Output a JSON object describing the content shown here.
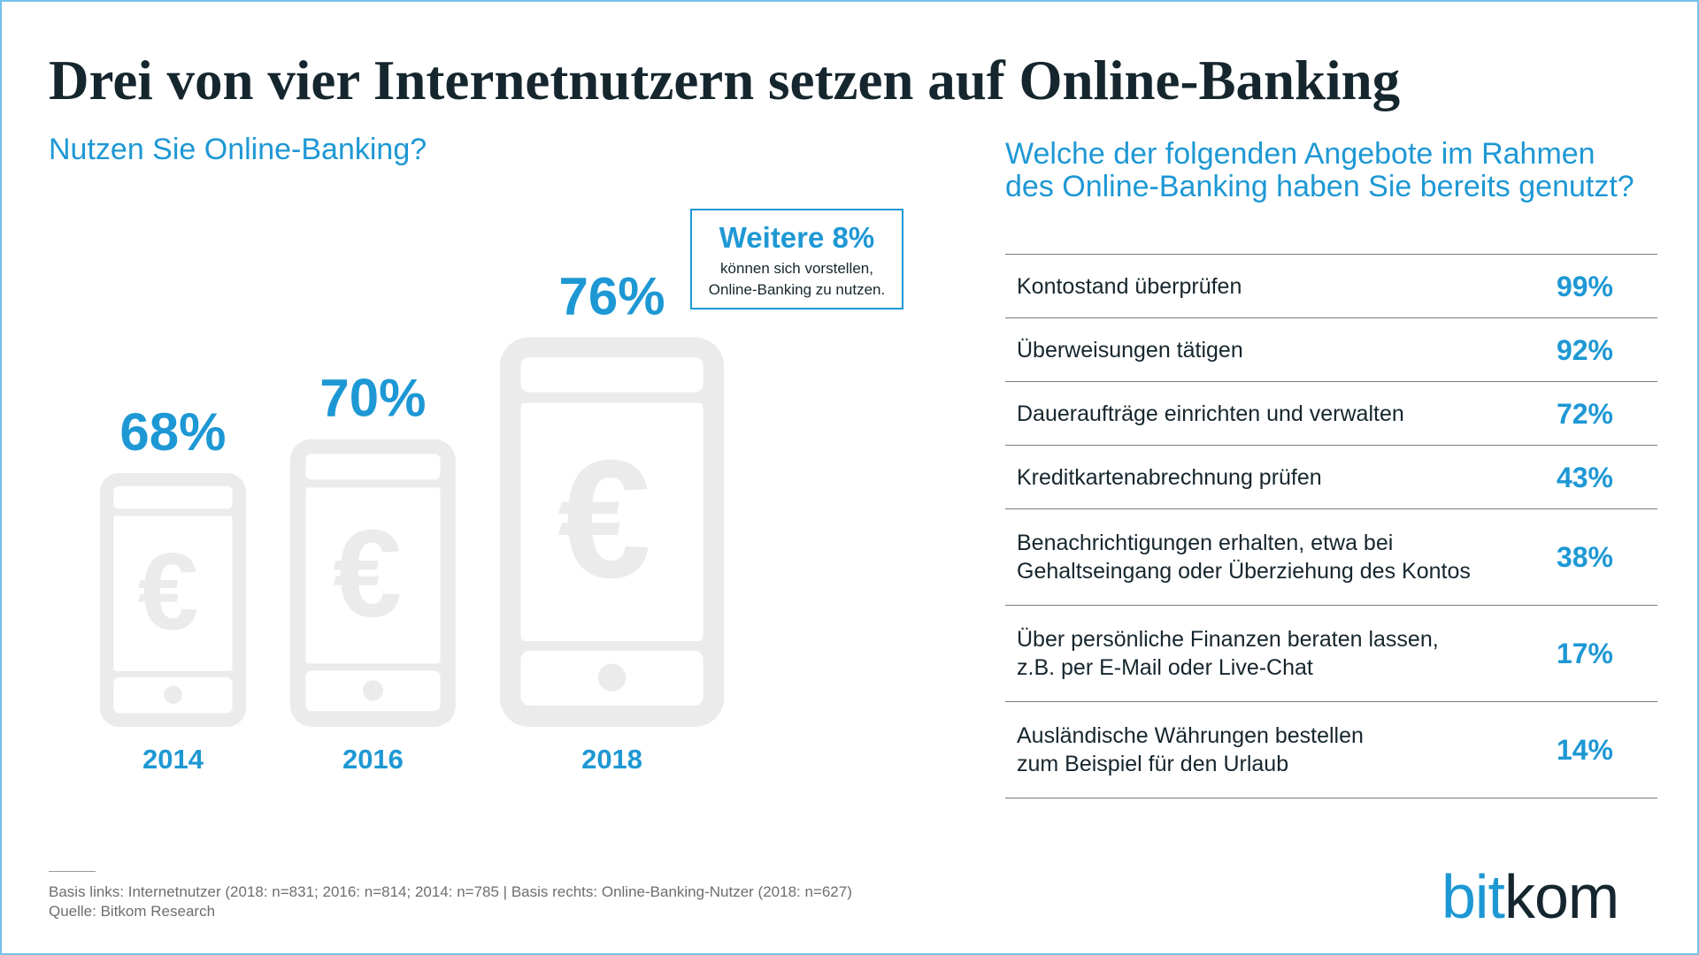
{
  "title": "Drei von vier Internetnutzern setzen auf Online-Banking",
  "chart_data": [
    {
      "type": "bar",
      "title": "Nutzen Sie Online-Banking?",
      "categories": [
        "2014",
        "2016",
        "2018"
      ],
      "values": [
        68,
        70,
        76
      ],
      "unit": "%",
      "mark_icon": "smartphone-euro-icon",
      "annotation": {
        "headline": "Weitere 8%",
        "lines": [
          "können sich vorstellen,",
          "Online-Banking zu nutzen."
        ]
      }
    },
    {
      "type": "table",
      "title_lines": [
        "Welche der folgenden Angebote im Rahmen",
        "des Online-Banking haben Sie bereits genutzt?"
      ],
      "unit": "%",
      "rows": [
        {
          "label_lines": [
            "Kontostand überprüfen"
          ],
          "value": 99
        },
        {
          "label_lines": [
            "Überweisungen tätigen"
          ],
          "value": 92
        },
        {
          "label_lines": [
            "Daueraufträge einrichten und verwalten"
          ],
          "value": 72
        },
        {
          "label_lines": [
            "Kreditkartenabrechnung prüfen"
          ],
          "value": 43
        },
        {
          "label_lines": [
            "Benachrichtigungen erhalten, etwa bei",
            "Gehaltseingang oder Überziehung des Kontos"
          ],
          "value": 38
        },
        {
          "label_lines": [
            "Über persönliche Finanzen beraten lassen,",
            "z.B. per E-Mail oder Live-Chat"
          ],
          "value": 17
        },
        {
          "label_lines": [
            "Ausländische Währungen bestellen",
            "zum Beispiel für den Urlaub"
          ],
          "value": 14
        }
      ]
    }
  ],
  "footer": {
    "basis": "Basis links: Internetnutzer (2018: n=831; 2016: n=814; 2014: n=785 | Basis rechts: Online-Banking-Nutzer (2018: n=627)",
    "source": "Quelle: Bitkom Research"
  },
  "logo": {
    "part_blue": "bit",
    "part_dark": "kom"
  },
  "colors": {
    "accent": "#1e98d4",
    "text_dark": "#16262e",
    "phone_gray": "#ebebeb",
    "rule": "#7b7b7b",
    "footnote": "#6e6e6e",
    "frame": "#74c3e6"
  }
}
